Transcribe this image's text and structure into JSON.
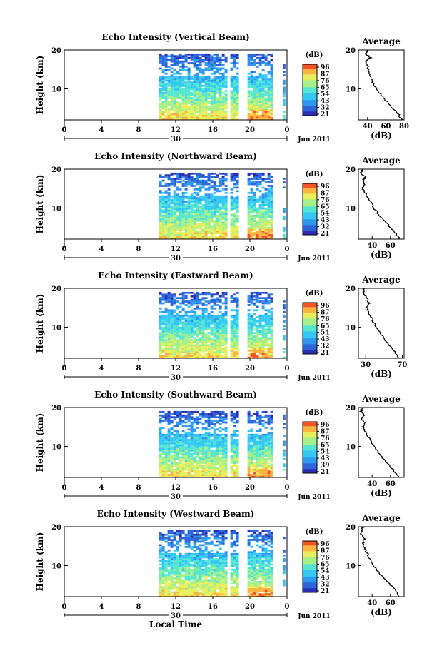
{
  "figure": {
    "xlabel": "Local Time",
    "date_label": "Jun 2011",
    "day_label": "30",
    "colorbar_unit": "(dB)",
    "colors": [
      "#2b2fb4",
      "#2c64d9",
      "#2f97ee",
      "#34c9f5",
      "#56e6cf",
      "#a6f08a",
      "#e9ef5a",
      "#fbb43f",
      "#f25426"
    ]
  },
  "chart_data": [
    {
      "type": "heatmap",
      "title": "Echo Intensity (Vertical Beam)",
      "ylabel": "Height (km)",
      "xlim": [
        0,
        24
      ],
      "ylim": [
        2,
        20
      ],
      "x_ticks": [
        "0",
        "4",
        "8",
        "12",
        "16",
        "20",
        "0"
      ],
      "y_ticks": [
        "20",
        "10"
      ],
      "data_start_hour": 10.2,
      "colorbar": {
        "min": 21,
        "max": 96,
        "ticks": [
          "96",
          "87",
          "76",
          "65",
          "54",
          "43",
          "32",
          "21"
        ]
      },
      "profile": {
        "title": "Average",
        "xlabel": "(dB)",
        "xlim": [
          30,
          80
        ],
        "x_ticks": [
          "40",
          "60",
          "80"
        ],
        "heights": [
          2,
          4,
          6,
          8,
          10,
          12,
          14,
          16,
          17,
          18,
          19,
          20
        ],
        "values": [
          78,
          72,
          64,
          56,
          50,
          45,
          42,
          40,
          38,
          43,
          38,
          40
        ]
      }
    },
    {
      "type": "heatmap",
      "title": "Echo Intensity (Northward Beam)",
      "ylabel": "Height (km)",
      "xlim": [
        0,
        24
      ],
      "ylim": [
        2,
        20
      ],
      "x_ticks": [
        "0",
        "4",
        "8",
        "12",
        "16",
        "20",
        "0"
      ],
      "y_ticks": [
        "20",
        "10"
      ],
      "data_start_hour": 10.2,
      "colorbar": {
        "min": 21,
        "max": 96,
        "ticks": [
          "96",
          "87",
          "76",
          "65",
          "54",
          "43",
          "32",
          "21"
        ]
      },
      "profile": {
        "title": "Average",
        "xlabel": "(dB)",
        "xlim": [
          25,
          75
        ],
        "x_ticks": [
          "40",
          "60"
        ],
        "heights": [
          2,
          4,
          6,
          8,
          10,
          12,
          14,
          15,
          16,
          17,
          18,
          19,
          20
        ],
        "values": [
          70,
          64,
          56,
          48,
          42,
          37,
          32,
          29,
          31,
          30,
          32,
          28,
          29
        ]
      }
    },
    {
      "type": "heatmap",
      "title": "Echo Intensity (Eastward Beam)",
      "ylabel": "Height (km)",
      "xlim": [
        0,
        24
      ],
      "ylim": [
        2,
        20
      ],
      "x_ticks": [
        "0",
        "4",
        "8",
        "12",
        "16",
        "20",
        "0"
      ],
      "y_ticks": [
        "20",
        "10"
      ],
      "data_start_hour": 10.2,
      "colorbar": {
        "min": 21,
        "max": 96,
        "ticks": [
          "96",
          "87",
          "76",
          "65",
          "54",
          "43",
          "32",
          "21"
        ]
      },
      "profile": {
        "title": "Average",
        "xlabel": "(dB)",
        "xlim": [
          22,
          72
        ],
        "x_ticks": [
          "30",
          "70"
        ],
        "heights": [
          2,
          4,
          6,
          8,
          10,
          12,
          14,
          15,
          16,
          17,
          18,
          19,
          20
        ],
        "values": [
          66,
          61,
          54,
          47,
          41,
          37,
          33,
          31,
          34,
          32,
          30,
          27,
          28
        ]
      }
    },
    {
      "type": "heatmap",
      "title": "Echo Intensity (Southward Beam)",
      "ylabel": "Height (km)",
      "xlim": [
        0,
        24
      ],
      "ylim": [
        2,
        20
      ],
      "x_ticks": [
        "0",
        "4",
        "8",
        "12",
        "16",
        "20",
        "0"
      ],
      "y_ticks": [
        "20",
        "10"
      ],
      "data_start_hour": 10.2,
      "colorbar": {
        "min": 21,
        "max": 96,
        "ticks": [
          "96",
          "87",
          "76",
          "65",
          "54",
          "43",
          "39",
          "21"
        ]
      },
      "profile": {
        "title": "Average",
        "xlabel": "(dB)",
        "xlim": [
          25,
          75
        ],
        "x_ticks": [
          "40",
          "60"
        ],
        "heights": [
          2,
          4,
          6,
          8,
          10,
          12,
          14,
          15,
          16,
          17,
          18,
          19,
          20
        ],
        "values": [
          69,
          63,
          55,
          48,
          42,
          37,
          32,
          30,
          33,
          28,
          31,
          28,
          29
        ]
      }
    },
    {
      "type": "heatmap",
      "title": "Echo Intensity (Westward Beam)",
      "ylabel": "Height (km)",
      "xlim": [
        0,
        24
      ],
      "ylim": [
        2,
        20
      ],
      "x_ticks": [
        "0",
        "4",
        "8",
        "12",
        "16",
        "20",
        "0"
      ],
      "y_ticks": [
        "20",
        "10"
      ],
      "data_start_hour": 10.2,
      "colorbar": {
        "min": 21,
        "max": 96,
        "ticks": [
          "96",
          "87",
          "76",
          "65",
          "54",
          "43",
          "32",
          "21"
        ]
      },
      "profile": {
        "title": "Average",
        "xlabel": "(dB)",
        "xlim": [
          25,
          75
        ],
        "x_ticks": [
          "40",
          "60"
        ],
        "heights": [
          2,
          4,
          6,
          8,
          10,
          12,
          14,
          15,
          16,
          17,
          18,
          19,
          20
        ],
        "values": [
          70,
          64,
          56,
          48,
          42,
          37,
          33,
          31,
          30,
          32,
          28,
          29,
          30
        ]
      }
    }
  ]
}
